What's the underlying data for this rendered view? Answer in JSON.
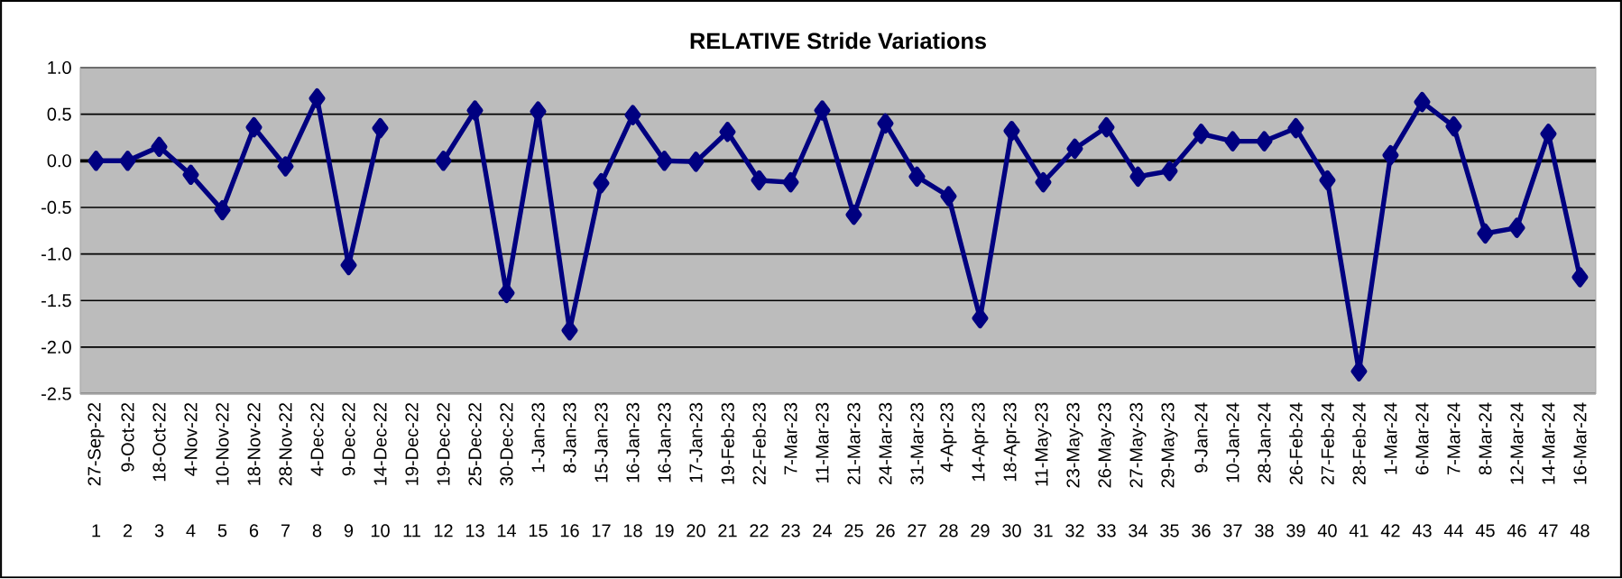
{
  "chart_data": {
    "type": "line",
    "title": "RELATIVE Stride Variations",
    "categories": [
      "27-Sep-22",
      "9-Oct-22",
      "18-Oct-22",
      "4-Nov-22",
      "10-Nov-22",
      "18-Nov-22",
      "28-Nov-22",
      "4-Dec-22",
      "9-Dec-22",
      "14-Dec-22",
      "19-Dec-22",
      "19-Dec-22",
      "25-Dec-22",
      "30-Dec-22",
      "1-Jan-23",
      "8-Jan-23",
      "15-Jan-23",
      "16-Jan-23",
      "16-Jan-23",
      "17-Jan-23",
      "19-Feb-23",
      "22-Feb-23",
      "7-Mar-23",
      "11-Mar-23",
      "21-Mar-23",
      "24-Mar-23",
      "31-Mar-23",
      "4-Apr-23",
      "14-Apr-23",
      "18-Apr-23",
      "11-May-23",
      "23-May-23",
      "26-May-23",
      "27-May-23",
      "29-May-23",
      "9-Jan-24",
      "10-Jan-24",
      "28-Jan-24",
      "26-Feb-24",
      "27-Feb-24",
      "28-Feb-24",
      "1-Mar-24",
      "6-Mar-24",
      "7-Mar-24",
      "8-Mar-24",
      "12-Mar-24",
      "14-Mar-24",
      "16-Mar-24"
    ],
    "series": [
      {
        "color": "#000080",
        "values": [
          0,
          0,
          0.15,
          -0.15,
          -0.53,
          0.36,
          -0.06,
          0.67,
          -1.12,
          0.35,
          null,
          0,
          0.54,
          -1.42,
          0.53,
          -1.82,
          -0.24,
          0.49,
          0,
          -0.01,
          0.31,
          -0.21,
          -0.23,
          0.54,
          -0.58,
          0.4,
          -0.17,
          -0.38,
          -1.69,
          0.32,
          -0.23,
          0.13,
          0.36,
          -0.17,
          -0.11,
          0.29,
          0.21,
          0.21,
          0.35,
          -0.21,
          -2.26,
          0.06,
          0.63,
          0.37,
          -0.78,
          -0.72,
          0.29,
          -1.25
        ]
      }
    ],
    "ylim": [
      -2.5,
      1.0
    ],
    "yticks": [
      {
        "value": -2.5,
        "label": "-2.5"
      },
      {
        "value": -2.0,
        "label": "-2.0"
      },
      {
        "value": -1.5,
        "label": "-1.5"
      },
      {
        "value": -1.0,
        "label": "-1.0"
      },
      {
        "value": -0.5,
        "label": "-0.5"
      },
      {
        "value": 0,
        "label": "0.0"
      },
      {
        "value": 0.5,
        "label": "0.5"
      },
      {
        "value": 1.0,
        "label": "1.0"
      }
    ],
    "grid": "y",
    "marker": "diamond",
    "line_style": "solid",
    "annotations": [
      "1",
      "2",
      "3",
      "4",
      "5",
      "6",
      "7",
      "8",
      "9",
      "10",
      "11",
      "12",
      "13",
      "14",
      "15",
      "16",
      "17",
      "18",
      "19",
      "20",
      "21",
      "22",
      "23",
      "24",
      "25",
      "26",
      "27",
      "28",
      "29",
      "30",
      "31",
      "32",
      "33",
      "34",
      "35",
      "36",
      "37",
      "38",
      "39",
      "40",
      "41",
      "42",
      "43",
      "44",
      "45",
      "46",
      "47",
      "48"
    ]
  }
}
